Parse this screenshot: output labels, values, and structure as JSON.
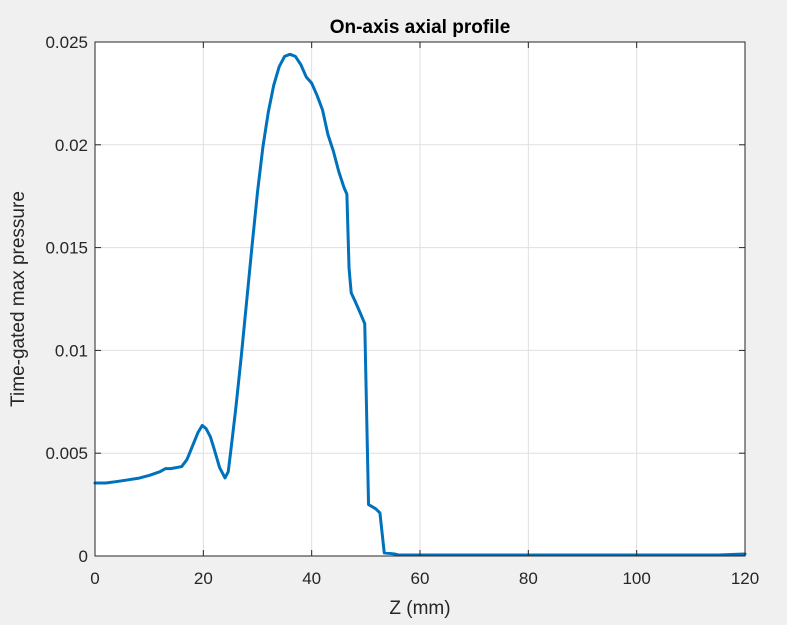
{
  "figure": {
    "background": "#f0f0f0",
    "plot_background": "#ffffff",
    "line_color": "#0072bd",
    "grid_color": "#dfdfdf"
  },
  "chart_data": {
    "type": "line",
    "title": "On-axis axial profile",
    "xlabel": "Z (mm)",
    "ylabel": "Time-gated max pressure",
    "xlim": [
      0,
      120
    ],
    "ylim": [
      0,
      0.025
    ],
    "grid": true,
    "x_ticks": [
      0,
      20,
      40,
      60,
      80,
      100,
      120
    ],
    "x_tick_labels": [
      "0",
      "20",
      "40",
      "60",
      "80",
      "100",
      "120"
    ],
    "y_ticks": [
      0,
      0.005,
      0.01,
      0.015,
      0.02,
      0.025
    ],
    "y_tick_labels": [
      "0",
      "0.005",
      "0.01",
      "0.015",
      "0.02",
      "0.025"
    ],
    "series": [
      {
        "color": "#0072bd",
        "x": [
          0,
          2,
          4,
          6,
          8,
          10,
          12,
          13,
          14,
          16,
          17,
          18,
          19,
          19.8,
          20.5,
          21.3,
          22,
          23,
          24,
          24.6,
          25.2,
          26,
          27,
          28,
          29,
          30,
          31,
          32,
          33,
          34,
          35,
          36,
          37,
          38,
          39,
          40,
          41,
          42,
          43,
          44,
          45,
          46,
          46.5,
          46.9,
          47.3,
          48,
          49,
          49.8,
          50.5,
          51.8,
          52.6,
          53.4,
          55.3,
          56,
          60,
          70,
          80,
          90,
          100,
          110,
          115,
          120
        ],
        "y": [
          0.00355,
          0.00355,
          0.00362,
          0.0037,
          0.00378,
          0.00392,
          0.0041,
          0.00425,
          0.00425,
          0.00435,
          0.0047,
          0.00535,
          0.006,
          0.00635,
          0.0062,
          0.0058,
          0.0052,
          0.0043,
          0.0038,
          0.0041,
          0.0054,
          0.0072,
          0.0097,
          0.0124,
          0.0151,
          0.0177,
          0.0199,
          0.0216,
          0.0229,
          0.0238,
          0.0243,
          0.0244,
          0.0243,
          0.0239,
          0.0233,
          0.023,
          0.0224,
          0.0217,
          0.0205,
          0.0197,
          0.0187,
          0.0179,
          0.0176,
          0.014,
          0.0128,
          0.0124,
          0.0118,
          0.0113,
          0.0025,
          0.0023,
          0.0021,
          0.00015,
          0.0001,
          5e-05,
          5e-05,
          5e-05,
          5e-05,
          5e-05,
          5e-05,
          5e-05,
          5e-05,
          0.0001
        ]
      }
    ]
  }
}
